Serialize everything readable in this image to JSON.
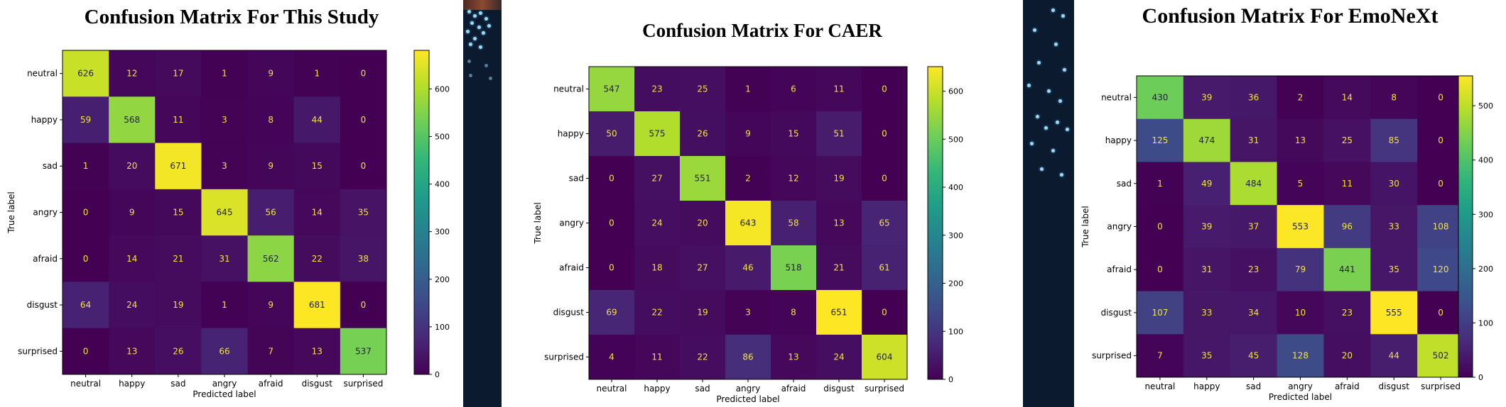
{
  "labels": [
    "neutral",
    "happy",
    "sad",
    "angry",
    "afraid",
    "disgust",
    "surprised"
  ],
  "chart_data": [
    {
      "type": "heatmap",
      "title": "Confusion Matrix For This Study",
      "xlabel": "Predicted label",
      "ylabel": "True label",
      "colormap": "viridis",
      "vmin": 0,
      "vmax": 681,
      "colorbar_ticks": [
        0,
        100,
        200,
        300,
        400,
        500,
        600
      ],
      "matrix": [
        [
          626,
          12,
          17,
          1,
          9,
          1,
          0
        ],
        [
          59,
          568,
          11,
          3,
          8,
          44,
          0
        ],
        [
          1,
          20,
          671,
          3,
          9,
          15,
          0
        ],
        [
          0,
          9,
          15,
          645,
          56,
          14,
          35
        ],
        [
          0,
          14,
          21,
          31,
          562,
          22,
          38
        ],
        [
          64,
          24,
          19,
          1,
          9,
          681,
          0
        ],
        [
          0,
          13,
          26,
          66,
          7,
          13,
          537
        ]
      ]
    },
    {
      "type": "heatmap",
      "title": "Confusion Matrix For CAER",
      "xlabel": "Predicted label",
      "ylabel": "True label",
      "colormap": "viridis",
      "vmin": 0,
      "vmax": 651,
      "colorbar_ticks": [
        0,
        100,
        200,
        300,
        400,
        500,
        600
      ],
      "matrix": [
        [
          547,
          23,
          25,
          1,
          6,
          11,
          0
        ],
        [
          50,
          575,
          26,
          9,
          15,
          51,
          0
        ],
        [
          0,
          27,
          551,
          2,
          12,
          19,
          0
        ],
        [
          0,
          24,
          20,
          643,
          58,
          13,
          65
        ],
        [
          0,
          18,
          27,
          46,
          518,
          21,
          61
        ],
        [
          69,
          22,
          19,
          3,
          8,
          651,
          0
        ],
        [
          4,
          11,
          22,
          86,
          13,
          24,
          604
        ]
      ]
    },
    {
      "type": "heatmap",
      "title": "Confusion Matrix For EmoNeXt",
      "xlabel": "Predicted label",
      "ylabel": "True label",
      "colormap": "viridis",
      "vmin": 0,
      "vmax": 555,
      "colorbar_ticks": [
        0,
        100,
        200,
        300,
        400,
        500
      ],
      "matrix": [
        [
          430,
          39,
          36,
          2,
          14,
          8,
          0
        ],
        [
          125,
          474,
          31,
          13,
          25,
          85,
          0
        ],
        [
          1,
          49,
          484,
          5,
          11,
          30,
          0
        ],
        [
          0,
          39,
          37,
          553,
          96,
          33,
          108
        ],
        [
          0,
          31,
          23,
          79,
          441,
          35,
          120
        ],
        [
          107,
          33,
          34,
          10,
          23,
          555,
          0
        ],
        [
          7,
          35,
          45,
          128,
          20,
          44,
          502
        ]
      ]
    }
  ]
}
